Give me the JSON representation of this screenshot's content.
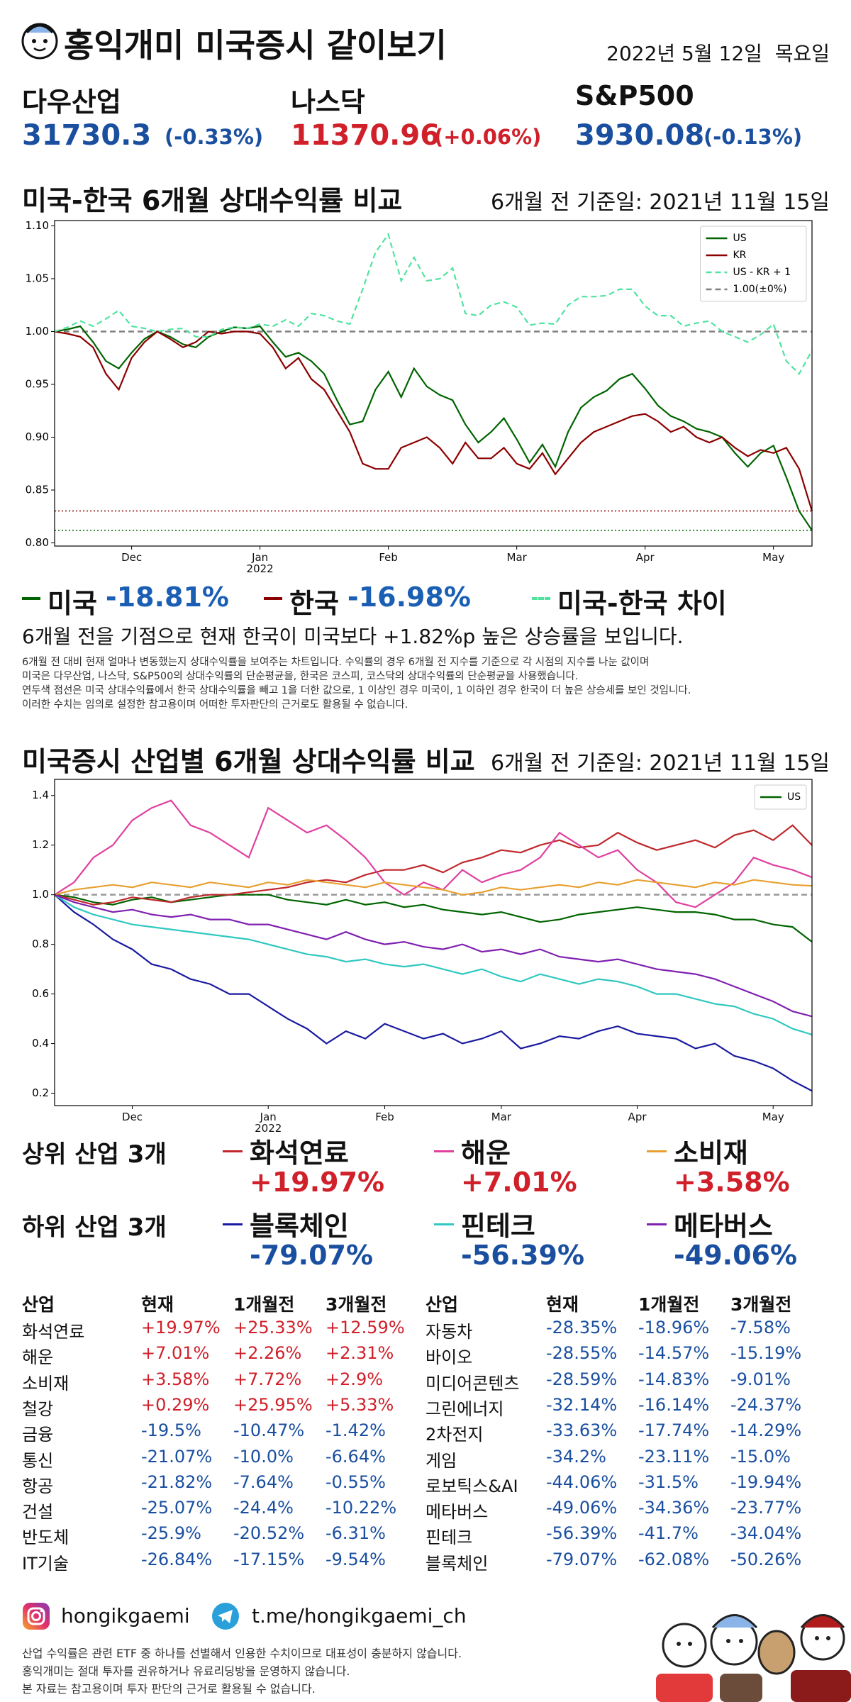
{
  "header": {
    "title": "홍익개미 미국증시 같이보기",
    "date": "2022년 5월 12일  목요일"
  },
  "indices": [
    {
      "name": "다우산업",
      "value": 31730.3,
      "change": "(-0.33%)",
      "color": "#1a4fa0"
    },
    {
      "name": "나스닥",
      "value": 11370.96,
      "change": "(+0.06%)",
      "color": "#d0202a"
    },
    {
      "name": "S&P500",
      "value": 3930.08,
      "change": "(-0.13%)",
      "color": "#1a4fa0"
    }
  ],
  "chart_data": [
    {
      "type": "line",
      "title": "미국-한국 6개월 상대수익률 비교",
      "subtitle": "6개월 전 기준일: 2021년 11월 15일",
      "categories": [
        null,
        null,
        null,
        null,
        null,
        null,
        "Dec",
        null,
        null,
        null,
        null,
        null,
        null,
        null,
        null,
        null,
        "Jan\n2022",
        null,
        null,
        null,
        null,
        null,
        null,
        null,
        null,
        null,
        "Feb",
        null,
        null,
        null,
        null,
        null,
        null,
        null,
        null,
        null,
        "Mar",
        null,
        null,
        null,
        null,
        null,
        null,
        null,
        null,
        null,
        "Apr",
        null,
        null,
        null,
        null,
        null,
        null,
        null,
        null,
        null,
        "May",
        null,
        null,
        null
      ],
      "ylim": [
        0.797,
        1.105
      ],
      "yticks": [
        {
          "value": 0.8,
          "label": "0.80"
        },
        {
          "value": 0.85,
          "label": "0.85"
        },
        {
          "value": 0.9,
          "label": "0.90"
        },
        {
          "value": 0.95,
          "label": "0.95"
        },
        {
          "value": 1,
          "label": "1.00"
        },
        {
          "value": 1.05,
          "label": "1.05"
        },
        {
          "value": 1.1,
          "label": "1.10"
        }
      ],
      "legend": "upper right",
      "series": [
        {
          "name": "US",
          "color": "#006400",
          "values": [
            1.0,
            1.002,
            1.005,
            0.99,
            0.972,
            0.965,
            0.98,
            0.993,
            1.0,
            0.995,
            0.988,
            0.985,
            0.995,
            1.0,
            1.004,
            1.003,
            1.005,
            0.99,
            0.976,
            0.98,
            0.972,
            0.96,
            0.935,
            0.912,
            0.915,
            0.945,
            0.962,
            0.938,
            0.965,
            0.948,
            0.94,
            0.935,
            0.912,
            0.895,
            0.905,
            0.918,
            0.898,
            0.876,
            0.893,
            0.872,
            0.905,
            0.928,
            0.938,
            0.944,
            0.955,
            0.96,
            0.946,
            0.93,
            0.92,
            0.915,
            0.908,
            0.905,
            0.9,
            0.885,
            0.872,
            0.885,
            0.892,
            0.862,
            0.83,
            0.8119
          ]
        },
        {
          "name": "KR",
          "color": "#8b0000",
          "values": [
            1.0,
            0.998,
            0.995,
            0.985,
            0.96,
            0.945,
            0.975,
            0.99,
            1.0,
            0.993,
            0.985,
            0.99,
            1.0,
            0.998,
            1.0,
            1.0,
            0.998,
            0.985,
            0.965,
            0.975,
            0.955,
            0.945,
            0.925,
            0.905,
            0.875,
            0.87,
            0.87,
            0.89,
            0.895,
            0.9,
            0.89,
            0.875,
            0.895,
            0.88,
            0.88,
            0.89,
            0.875,
            0.87,
            0.885,
            0.865,
            0.88,
            0.895,
            0.905,
            0.91,
            0.915,
            0.92,
            0.922,
            0.915,
            0.905,
            0.91,
            0.9,
            0.895,
            0.9,
            0.89,
            0.882,
            0.888,
            0.885,
            0.89,
            0.87,
            0.8302
          ]
        },
        {
          "name": "US - KR + 1",
          "color": "#50e3a0",
          "style": "dashed",
          "values": [
            1.0,
            1.004,
            1.01,
            1.005,
            1.012,
            1.02,
            1.005,
            1.003,
            1.0,
            1.002,
            1.003,
            0.995,
            0.995,
            1.002,
            1.004,
            1.003,
            1.007,
            1.005,
            1.011,
            1.005,
            1.017,
            1.015,
            1.01,
            1.007,
            1.04,
            1.075,
            1.092,
            1.048,
            1.07,
            1.048,
            1.05,
            1.06,
            1.017,
            1.015,
            1.025,
            1.028,
            1.023,
            1.006,
            1.008,
            1.007,
            1.025,
            1.033,
            1.033,
            1.034,
            1.04,
            1.04,
            1.024,
            1.015,
            1.015,
            1.005,
            1.008,
            1.01,
            1.0,
            0.995,
            0.99,
            0.997,
            1.007,
            0.972,
            0.96,
            0.982
          ]
        }
      ],
      "reference_lines": [
        {
          "name": "1.00(±0%)",
          "value": 1,
          "color": "#808080",
          "style": "dashed"
        },
        {
          "value": 0.8302,
          "color": "#8b0000",
          "style": "dotted"
        },
        {
          "value": 0.8119,
          "color": "#006400",
          "style": "dotted"
        }
      ]
    },
    {
      "type": "line",
      "title": "미국증시 산업별 6개월 상대수익률 비교",
      "subtitle": "6개월 전 기준일: 2021년 11월 15일",
      "categories": [
        null,
        null,
        null,
        null,
        "Dec",
        null,
        null,
        null,
        null,
        null,
        null,
        "Jan\n2022",
        null,
        null,
        null,
        null,
        null,
        "Feb",
        null,
        null,
        null,
        null,
        null,
        "Mar",
        null,
        null,
        null,
        null,
        null,
        null,
        "Apr",
        null,
        null,
        null,
        null,
        null,
        null,
        "May",
        null,
        null
      ],
      "ylim": [
        0.15,
        1.465
      ],
      "yticks": [
        0.2,
        0.4,
        0.6,
        0.8,
        {
          "value": 1,
          "label": "1.0"
        },
        1.2,
        1.4
      ],
      "legend": "upper right",
      "series": [
        {
          "name": "US",
          "color": "#006400",
          "values": [
            1.0,
            0.99,
            0.97,
            0.96,
            0.98,
            0.99,
            0.97,
            0.98,
            0.99,
            1.0,
            1.0,
            1.0,
            0.98,
            0.97,
            0.96,
            0.98,
            0.96,
            0.97,
            0.95,
            0.96,
            0.94,
            0.93,
            0.92,
            0.93,
            0.91,
            0.89,
            0.9,
            0.92,
            0.93,
            0.94,
            0.95,
            0.94,
            0.93,
            0.93,
            0.92,
            0.9,
            0.9,
            0.88,
            0.87,
            0.81
          ]
        },
        {
          "color": "#c0282d",
          "values": [
            1.0,
            0.98,
            0.96,
            0.97,
            0.99,
            0.98,
            0.97,
            0.99,
            1.0,
            1.0,
            1.01,
            1.02,
            1.03,
            1.05,
            1.06,
            1.05,
            1.08,
            1.1,
            1.1,
            1.12,
            1.09,
            1.13,
            1.15,
            1.18,
            1.17,
            1.2,
            1.22,
            1.19,
            1.2,
            1.25,
            1.21,
            1.18,
            1.2,
            1.22,
            1.19,
            1.24,
            1.26,
            1.22,
            1.28,
            1.1997
          ]
        },
        {
          "color": "#e040a0",
          "values": [
            1.0,
            1.05,
            1.15,
            1.2,
            1.3,
            1.35,
            1.38,
            1.28,
            1.25,
            1.2,
            1.15,
            1.35,
            1.3,
            1.25,
            1.28,
            1.22,
            1.15,
            1.05,
            1.0,
            1.05,
            1.02,
            1.1,
            1.05,
            1.08,
            1.1,
            1.15,
            1.25,
            1.2,
            1.15,
            1.18,
            1.1,
            1.05,
            0.97,
            0.95,
            1.0,
            1.05,
            1.15,
            1.12,
            1.1,
            1.0701
          ]
        },
        {
          "color": "#e8a030",
          "values": [
            1.0,
            1.02,
            1.03,
            1.04,
            1.03,
            1.05,
            1.04,
            1.03,
            1.05,
            1.04,
            1.03,
            1.05,
            1.04,
            1.06,
            1.05,
            1.04,
            1.03,
            1.05,
            1.04,
            1.03,
            1.02,
            1.0,
            1.01,
            1.03,
            1.02,
            1.03,
            1.04,
            1.03,
            1.05,
            1.04,
            1.06,
            1.05,
            1.04,
            1.03,
            1.05,
            1.04,
            1.06,
            1.05,
            1.04,
            1.0358
          ]
        },
        {
          "color": "#1a1aa0",
          "values": [
            1.0,
            0.93,
            0.88,
            0.82,
            0.78,
            0.72,
            0.7,
            0.66,
            0.64,
            0.6,
            0.6,
            0.55,
            0.5,
            0.46,
            0.4,
            0.45,
            0.42,
            0.48,
            0.45,
            0.42,
            0.44,
            0.4,
            0.42,
            0.45,
            0.38,
            0.4,
            0.43,
            0.42,
            0.45,
            0.47,
            0.44,
            0.43,
            0.42,
            0.38,
            0.4,
            0.35,
            0.33,
            0.3,
            0.25,
            0.2093
          ]
        },
        {
          "color": "#30c8c0",
          "values": [
            1.0,
            0.95,
            0.92,
            0.9,
            0.88,
            0.87,
            0.86,
            0.85,
            0.84,
            0.83,
            0.82,
            0.8,
            0.78,
            0.76,
            0.75,
            0.73,
            0.74,
            0.72,
            0.71,
            0.72,
            0.7,
            0.68,
            0.7,
            0.67,
            0.65,
            0.68,
            0.66,
            0.64,
            0.66,
            0.65,
            0.63,
            0.6,
            0.6,
            0.58,
            0.56,
            0.55,
            0.52,
            0.5,
            0.46,
            0.4361
          ]
        },
        {
          "color": "#8020b0",
          "values": [
            1.0,
            0.97,
            0.95,
            0.93,
            0.94,
            0.92,
            0.91,
            0.92,
            0.9,
            0.9,
            0.88,
            0.88,
            0.86,
            0.84,
            0.82,
            0.85,
            0.82,
            0.8,
            0.81,
            0.79,
            0.78,
            0.8,
            0.77,
            0.78,
            0.76,
            0.78,
            0.75,
            0.74,
            0.73,
            0.74,
            0.72,
            0.7,
            0.69,
            0.68,
            0.66,
            0.63,
            0.6,
            0.57,
            0.53,
            0.5094
          ]
        }
      ],
      "reference_lines": [
        {
          "value": 1,
          "color": "#999999",
          "style": "dashed"
        }
      ]
    }
  ],
  "comparison": {
    "legend": [
      {
        "label": "미국",
        "value": "-18.81%",
        "color": "#006400"
      },
      {
        "label": "한국",
        "value": "-16.98%",
        "color": "#8b0000"
      },
      {
        "label": "미국-한국 차이",
        "color": "#50e3a0"
      }
    ],
    "value_color": "#1a5fb4",
    "conclusion": "6개월 전을 기점으로 현재 한국이 미국보다 +1.82%p 높은 상승률을 보입니다.",
    "notes": [
      "6개월 전 대비 현재 얼마나 변동했는지 상대수익률을 보여주는 차트입니다. 수익률의 경우 6개월 전 지수를 기준으로 각 시점의 지수를 나눈 값이며",
      "미국은 다우산업, 나스닥, S&P500의 상대수익률의 단순평균을, 한국은 코스피, 코스닥의 상대수익률의 단순평균을 사용했습니다.",
      "연두색 점선은 미국 상대수익률에서 한국 상대수익률을 빼고 1을 더한 값으로, 1 이상인 경우 미국이, 1 이하인 경우 한국이 더 높은 상승세를 보인 것입니다.",
      "이러한 수치는 임의로 설정한 참고용이며 어떠한 투자판단의 근거로도 활용될 수 없습니다."
    ]
  },
  "industries": {
    "top": {
      "label": "상위 산업 3개",
      "value_color": "#d0202a",
      "items": [
        {
          "name": "화석연료",
          "value": "+19.97%",
          "color": "#c0282d"
        },
        {
          "name": "해운",
          "value": "+7.01%",
          "color": "#e040a0"
        },
        {
          "name": "소비재",
          "value": "+3.58%",
          "color": "#e8a030"
        }
      ]
    },
    "bottom": {
      "label": "하위 산업 3개",
      "value_color": "#1a4fa0",
      "items": [
        {
          "name": "블록체인",
          "value": "-79.07%",
          "color": "#1a1aa0"
        },
        {
          "name": "핀테크",
          "value": "-56.39%",
          "color": "#30c8c0"
        },
        {
          "name": "메타버스",
          "value": "-49.06%",
          "color": "#8020b0"
        }
      ]
    }
  },
  "table": {
    "headers": [
      "산업",
      "현재",
      "1개월전",
      "3개월전"
    ],
    "up_color": "#d0202a",
    "down_color": "#1a4fa0",
    "left_rows": [
      [
        "화석연료",
        "+19.97%",
        "+25.33%",
        "+12.59%"
      ],
      [
        "해운",
        "+7.01%",
        "+2.26%",
        "+2.31%"
      ],
      [
        "소비재",
        "+3.58%",
        "+7.72%",
        "+2.9%"
      ],
      [
        "철강",
        "+0.29%",
        "+25.95%",
        "+5.33%"
      ],
      [
        "금융",
        "-19.5%",
        "-10.47%",
        "-1.42%"
      ],
      [
        "통신",
        "-21.07%",
        "-10.0%",
        "-6.64%"
      ],
      [
        "항공",
        "-21.82%",
        "-7.64%",
        "-0.55%"
      ],
      [
        "건설",
        "-25.07%",
        "-24.4%",
        "-10.22%"
      ],
      [
        "반도체",
        "-25.9%",
        "-20.52%",
        "-6.31%"
      ],
      [
        "IT기술",
        "-26.84%",
        "-17.15%",
        "-9.54%"
      ]
    ],
    "right_rows": [
      [
        "자동차",
        "-28.35%",
        "-18.96%",
        "-7.58%"
      ],
      [
        "바이오",
        "-28.55%",
        "-14.57%",
        "-15.19%"
      ],
      [
        "미디어콘텐츠",
        "-28.59%",
        "-14.83%",
        "-9.01%"
      ],
      [
        "그린에너지",
        "-32.14%",
        "-16.14%",
        "-24.37%"
      ],
      [
        "2차전지",
        "-33.63%",
        "-17.74%",
        "-14.29%"
      ],
      [
        "게임",
        "-34.2%",
        "-23.11%",
        "-15.0%"
      ],
      [
        "로보틱스&AI",
        "-44.06%",
        "-31.5%",
        "-19.94%"
      ],
      [
        "메타버스",
        "-49.06%",
        "-34.36%",
        "-23.77%"
      ],
      [
        "핀테크",
        "-56.39%",
        "-41.7%",
        "-34.04%"
      ],
      [
        "블록체인",
        "-79.07%",
        "-62.08%",
        "-50.26%"
      ]
    ]
  },
  "footer": {
    "instagram": "hongikgaemi",
    "telegram": "t.me/hongikgaemi_ch",
    "disclaimer": [
      "산업 수익률은 관련 ETF 중 하나를 선별해서 인용한 수치이므로 대표성이 충분하지 않습니다.",
      "홍익개미는 절대 투자를 권유하거나 유료리딩방을 운영하지 않습니다.",
      "본 자료는 참고용이며 투자 판단의 근거로 활용될 수 없습니다."
    ]
  }
}
